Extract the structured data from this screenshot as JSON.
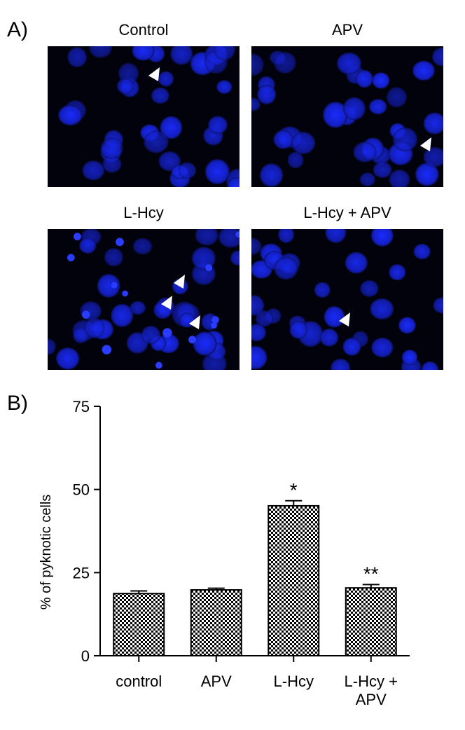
{
  "panel_labels": [
    "A)",
    "B)"
  ],
  "panels": [
    {
      "title": "Control"
    },
    {
      "title": "APV"
    },
    {
      "title": "L-Hcy"
    },
    {
      "title": "L-Hcy + APV"
    }
  ],
  "chart_data": {
    "type": "bar",
    "y_label": "% of pyknotic cells",
    "categories": [
      "control",
      "APV",
      "L-Hcy",
      "L-Hcy + APV"
    ],
    "values": [
      18.7,
      19.8,
      45.1,
      20.4
    ],
    "errors": [
      0.8,
      0.5,
      1.5,
      1.0
    ],
    "annotations": [
      {
        "category": "L-Hcy",
        "text": "*"
      },
      {
        "category": "L-Hcy + APV",
        "text": "**"
      }
    ],
    "ylim": [
      0,
      75
    ],
    "yticks": [
      0,
      25,
      50,
      75
    ],
    "color": "#000000",
    "pattern": "checker"
  }
}
